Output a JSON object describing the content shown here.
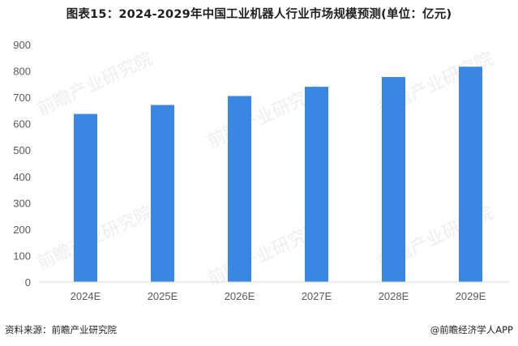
{
  "chart_data": {
    "type": "bar",
    "title": "图表15：2024-2029年中国工业机器人行业市场规模预测(单位：亿元)",
    "categories": [
      "2024E",
      "2025E",
      "2026E",
      "2027E",
      "2028E",
      "2029E"
    ],
    "values": [
      637,
      671,
      705,
      740,
      777,
      816
    ],
    "ylim": [
      0,
      900
    ],
    "yticks": [
      0,
      100,
      200,
      300,
      400,
      500,
      600,
      700,
      800,
      900
    ],
    "grid": false,
    "legend": "none",
    "bar_color": "#3A87E3"
  },
  "footer": {
    "source": "资料来源：前瞻产业研究院",
    "brand": "@前瞻经济学人APP"
  },
  "watermark": {
    "text": "前瞻产业研究院",
    "color": "#D9D9D9"
  }
}
